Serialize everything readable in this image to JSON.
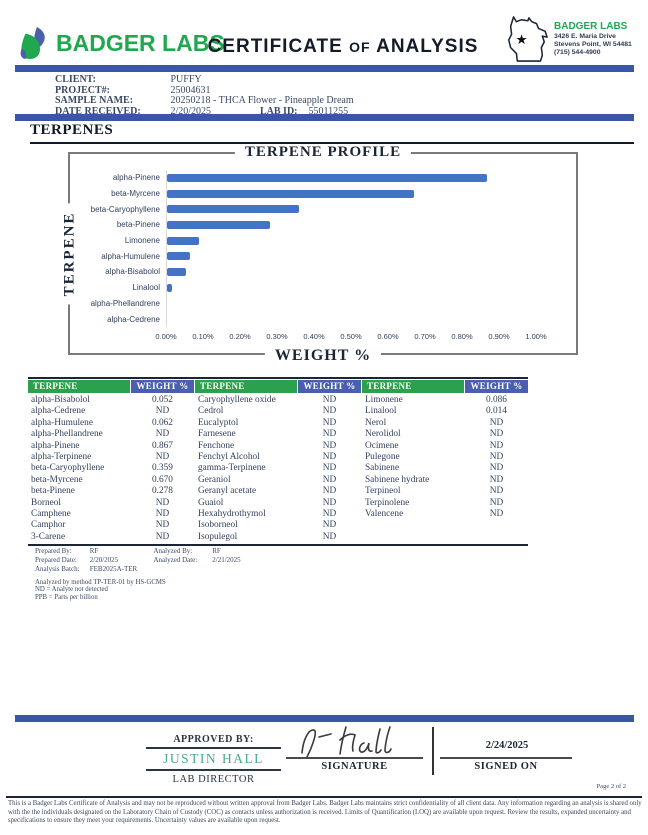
{
  "header": {
    "logo_text": "BADGER LABS",
    "title_left": "CERTIFICATE",
    "title_of": "OF",
    "title_right": "ANALYSIS",
    "address": {
      "name": "BADGER LABS",
      "line1": "3426 E. Maria Drive",
      "line2": "Stevens Point, WI 54481",
      "line3": "(715) 544-4900"
    }
  },
  "client_info": {
    "rows": [
      {
        "label": "CLIENT:",
        "value": "PUFFY"
      },
      {
        "label": "PROJECT#:",
        "value": "25004631"
      },
      {
        "label": "SAMPLE NAME:",
        "value": "20250218 - THCA Flower - Pineapple Dream"
      },
      {
        "label": "DATE RECEIVED:",
        "value": "2/20/2025",
        "label2": "LAB ID:",
        "value2": "55011255"
      }
    ]
  },
  "section_title": "TERPENES",
  "chart_data": {
    "type": "bar",
    "orientation": "horizontal",
    "title": "TERPENE PROFILE",
    "xlabel": "WEIGHT %",
    "ylabel": "TERPENE",
    "categories": [
      "alpha-Pinene",
      "beta-Myrcene",
      "beta-Caryophyllene",
      "beta-Pinene",
      "Limonene",
      "alpha-Humulene",
      "alpha-Bisabolol",
      "Linalool",
      "alpha-Phellandrene",
      "alpha-Cedrene"
    ],
    "values": [
      0.867,
      0.67,
      0.359,
      0.278,
      0.086,
      0.062,
      0.052,
      0.014,
      0,
      0
    ],
    "xlim": [
      0,
      1.0
    ],
    "x_ticks": [
      "0.00%",
      "0.10%",
      "0.20%",
      "0.30%",
      "0.40%",
      "0.50%",
      "0.60%",
      "0.70%",
      "0.80%",
      "0.90%",
      "1.00%"
    ],
    "grid": false,
    "legend": "none",
    "bar_color": "#4472C4"
  },
  "table": {
    "headers": [
      "TERPENE",
      "WEIGHT %"
    ],
    "groups": 3,
    "rows": [
      [
        [
          "alpha-Bisabolol",
          "0.052"
        ],
        [
          "Caryophyllene oxide",
          "ND"
        ],
        [
          "Limonene",
          "0.086"
        ]
      ],
      [
        [
          "alpha-Cedrene",
          "ND"
        ],
        [
          "Cedrol",
          "ND"
        ],
        [
          "Linalool",
          "0.014"
        ]
      ],
      [
        [
          "alpha-Humulene",
          "0.062"
        ],
        [
          "Eucalyptol",
          "ND"
        ],
        [
          "Nerol",
          "ND"
        ]
      ],
      [
        [
          "alpha-Phellandrene",
          "ND"
        ],
        [
          "Farnesene",
          "ND"
        ],
        [
          "Nerolidol",
          "ND"
        ]
      ],
      [
        [
          "alpha-Pinene",
          "0.867"
        ],
        [
          "Fenchone",
          "ND"
        ],
        [
          "Ocimene",
          "ND"
        ]
      ],
      [
        [
          "alpha-Terpinene",
          "ND"
        ],
        [
          "Fenchyl Alcohol",
          "ND"
        ],
        [
          "Pulegone",
          "ND"
        ]
      ],
      [
        [
          "beta-Caryophyllene",
          "0.359"
        ],
        [
          "gamma-Terpinene",
          "ND"
        ],
        [
          "Sabinene",
          "ND"
        ]
      ],
      [
        [
          "beta-Myrcene",
          "0.670"
        ],
        [
          "Geraniol",
          "ND"
        ],
        [
          "Sabinene hydrate",
          "ND"
        ]
      ],
      [
        [
          "beta-Pinene",
          "0.278"
        ],
        [
          "Geranyl acetate",
          "ND"
        ],
        [
          "Terpineol",
          "ND"
        ]
      ],
      [
        [
          "Borneol",
          "ND"
        ],
        [
          "Guaiol",
          "ND"
        ],
        [
          "Terpinolene",
          "ND"
        ]
      ],
      [
        [
          "Camphene",
          "ND"
        ],
        [
          "Hexahydrothymol",
          "ND"
        ],
        [
          "Valencene",
          "ND"
        ]
      ],
      [
        [
          "Camphor",
          "ND"
        ],
        [
          "Isoborneol",
          "ND"
        ],
        [
          "",
          ""
        ]
      ],
      [
        [
          "3-Carene",
          "ND"
        ],
        [
          "Isopulegol",
          "ND"
        ],
        [
          "",
          ""
        ]
      ]
    ]
  },
  "notes": {
    "rows": [
      {
        "l1": "Prepared By:",
        "v1": "RF",
        "l2": "Analyzed By:",
        "v2": "RF"
      },
      {
        "l1": "Prepared Date:",
        "v1": "2/20/2025",
        "l2": "Analyzed Date:",
        "v2": "2/21/2025"
      },
      {
        "l1": "Analysis Batch:",
        "v1": "FEB2025A-TER",
        "l2": "",
        "v2": ""
      }
    ],
    "lines": [
      "Analyzed by method TP-TER-01 by HS-GCMS",
      "ND = Analyte not detected",
      "PPB = Parts per billion"
    ]
  },
  "approval": {
    "approved_by_label": "APPROVED BY:",
    "approver_name": "JUSTIN HALL",
    "approver_title": "LAB DIRECTOR",
    "signature_label": "SIGNATURE",
    "signed_on_label": "SIGNED ON",
    "signed_date": "2/24/2025"
  },
  "footer": {
    "page_label": "Page 2 of 2",
    "disclaimer": "This is a Badger Labs Certificate of Analysis and may not be reproduced without written approval from Badger Labs. Badger Labs maintains strict confidentiality of all client data. Any information regarding an analysis is shared only with the the individuals designated on the Laboratory Chain of Custody (COC) as contacts unless authorization is received. Limits of Quantification (LOQ) are available upon request. Review the results, expanded uncertainty and specifications to ensure they meet your requirements. Uncertainty values are available upon request."
  },
  "colors": {
    "accent_blue_bar": "#3B56A6",
    "chart_bar_blue": "#4472C4",
    "table_header_green": "#2BA14D",
    "table_header_blue": "#4A5FAE",
    "brand_green": "#1FA84F",
    "approver_teal": "#48A795"
  }
}
